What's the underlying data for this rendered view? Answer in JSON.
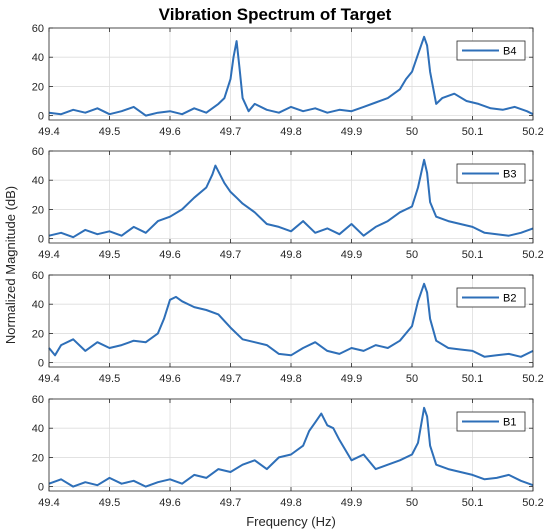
{
  "figure": {
    "title": "Vibration Spectrum of Target",
    "xlabel": "Frequency (Hz)",
    "ylabel": "Normalized Magnitude (dB)"
  },
  "colors": {
    "line": "#2e6fb8",
    "grid": "#dedede",
    "axis": "#262626"
  },
  "chart_data": [
    {
      "type": "line",
      "legend": "B4",
      "legend_placement": "top-right",
      "grid": true,
      "xlim": [
        49.4,
        50.2
      ],
      "ylim": [
        -3,
        60
      ],
      "xticks": [
        "49.4",
        "49.5",
        "49.6",
        "49.7",
        "49.8",
        "49.9",
        "50",
        "50.1",
        "50.2"
      ],
      "yticks": [
        "0",
        "20",
        "40",
        "60"
      ],
      "series": [
        {
          "name": "B4",
          "x": [
            49.4,
            49.42,
            49.44,
            49.46,
            49.48,
            49.5,
            49.52,
            49.54,
            49.56,
            49.58,
            49.6,
            49.62,
            49.64,
            49.66,
            49.68,
            49.69,
            49.7,
            49.705,
            49.71,
            49.715,
            49.72,
            49.73,
            49.74,
            49.76,
            49.78,
            49.8,
            49.82,
            49.84,
            49.86,
            49.88,
            49.9,
            49.92,
            49.94,
            49.96,
            49.98,
            49.99,
            50.0,
            50.01,
            50.02,
            50.025,
            50.03,
            50.04,
            50.05,
            50.07,
            50.09,
            50.11,
            50.13,
            50.15,
            50.17,
            50.19,
            50.2
          ],
          "y": [
            2,
            1,
            4,
            2,
            5,
            1,
            3,
            6,
            0,
            2,
            3,
            1,
            5,
            2,
            8,
            12,
            25,
            40,
            51,
            32,
            12,
            3,
            8,
            4,
            2,
            6,
            3,
            5,
            2,
            4,
            3,
            6,
            9,
            12,
            18,
            25,
            30,
            42,
            54,
            48,
            30,
            8,
            12,
            15,
            10,
            8,
            5,
            4,
            6,
            3,
            1
          ]
        }
      ]
    },
    {
      "type": "line",
      "legend": "B3",
      "legend_placement": "top-right",
      "grid": true,
      "xlim": [
        49.4,
        50.2
      ],
      "ylim": [
        -3,
        60
      ],
      "xticks": [
        "49.4",
        "49.5",
        "49.6",
        "49.7",
        "49.8",
        "49.9",
        "50",
        "50.1",
        "50.2"
      ],
      "yticks": [
        "0",
        "20",
        "40",
        "60"
      ],
      "series": [
        {
          "name": "B3",
          "x": [
            49.4,
            49.42,
            49.44,
            49.46,
            49.48,
            49.5,
            49.52,
            49.54,
            49.56,
            49.58,
            49.6,
            49.62,
            49.64,
            49.66,
            49.67,
            49.675,
            49.68,
            49.69,
            49.7,
            49.71,
            49.72,
            49.74,
            49.76,
            49.78,
            49.8,
            49.82,
            49.84,
            49.86,
            49.88,
            49.9,
            49.92,
            49.94,
            49.96,
            49.98,
            50.0,
            50.01,
            50.02,
            50.025,
            50.03,
            50.04,
            50.06,
            50.08,
            50.1,
            50.12,
            50.14,
            50.16,
            50.18,
            50.2
          ],
          "y": [
            2,
            4,
            1,
            6,
            3,
            5,
            2,
            8,
            4,
            12,
            15,
            20,
            28,
            35,
            44,
            50,
            46,
            38,
            32,
            28,
            24,
            18,
            10,
            8,
            5,
            12,
            4,
            7,
            3,
            10,
            2,
            8,
            12,
            18,
            22,
            35,
            54,
            45,
            25,
            15,
            12,
            10,
            8,
            4,
            3,
            2,
            4,
            7
          ]
        }
      ]
    },
    {
      "type": "line",
      "legend": "B2",
      "legend_placement": "top-right",
      "grid": true,
      "xlim": [
        49.4,
        50.2
      ],
      "ylim": [
        -3,
        60
      ],
      "xticks": [
        "49.4",
        "49.5",
        "49.6",
        "49.7",
        "49.8",
        "49.9",
        "50",
        "50.1",
        "50.2"
      ],
      "yticks": [
        "0",
        "20",
        "40",
        "60"
      ],
      "series": [
        {
          "name": "B2",
          "x": [
            49.4,
            49.41,
            49.42,
            49.44,
            49.46,
            49.48,
            49.5,
            49.52,
            49.54,
            49.56,
            49.58,
            49.59,
            49.6,
            49.61,
            49.62,
            49.64,
            49.66,
            49.68,
            49.7,
            49.72,
            49.74,
            49.76,
            49.78,
            49.8,
            49.82,
            49.84,
            49.86,
            49.88,
            49.9,
            49.92,
            49.94,
            49.96,
            49.98,
            50.0,
            50.01,
            50.02,
            50.025,
            50.03,
            50.04,
            50.06,
            50.08,
            50.1,
            50.12,
            50.14,
            50.16,
            50.18,
            50.2
          ],
          "y": [
            10,
            5,
            12,
            16,
            8,
            14,
            10,
            12,
            15,
            14,
            20,
            30,
            43,
            45,
            42,
            38,
            36,
            33,
            24,
            16,
            14,
            12,
            6,
            5,
            10,
            14,
            8,
            6,
            10,
            8,
            12,
            10,
            15,
            25,
            42,
            54,
            48,
            30,
            15,
            10,
            9,
            8,
            4,
            5,
            6,
            4,
            8
          ]
        }
      ]
    },
    {
      "type": "line",
      "legend": "B1",
      "legend_placement": "top-right",
      "grid": true,
      "xlim": [
        49.4,
        50.2
      ],
      "ylim": [
        -3,
        60
      ],
      "xticks": [
        "49.4",
        "49.5",
        "49.6",
        "49.7",
        "49.8",
        "49.9",
        "50",
        "50.1",
        "50.2"
      ],
      "yticks": [
        "0",
        "20",
        "40",
        "60"
      ],
      "series": [
        {
          "name": "B1",
          "x": [
            49.4,
            49.42,
            49.44,
            49.46,
            49.48,
            49.5,
            49.52,
            49.54,
            49.56,
            49.58,
            49.6,
            49.62,
            49.64,
            49.66,
            49.68,
            49.7,
            49.72,
            49.74,
            49.76,
            49.78,
            49.8,
            49.82,
            49.83,
            49.84,
            49.85,
            49.86,
            49.87,
            49.88,
            49.9,
            49.92,
            49.94,
            49.96,
            49.98,
            50.0,
            50.01,
            50.02,
            50.025,
            50.03,
            50.04,
            50.06,
            50.08,
            50.1,
            50.12,
            50.14,
            50.16,
            50.18,
            50.2
          ],
          "y": [
            2,
            5,
            0,
            3,
            1,
            6,
            2,
            4,
            0,
            3,
            5,
            2,
            8,
            6,
            12,
            10,
            15,
            18,
            12,
            20,
            22,
            28,
            38,
            44,
            50,
            42,
            40,
            32,
            18,
            22,
            12,
            15,
            18,
            22,
            30,
            54,
            48,
            28,
            15,
            12,
            10,
            8,
            5,
            6,
            8,
            4,
            1
          ]
        }
      ]
    }
  ]
}
